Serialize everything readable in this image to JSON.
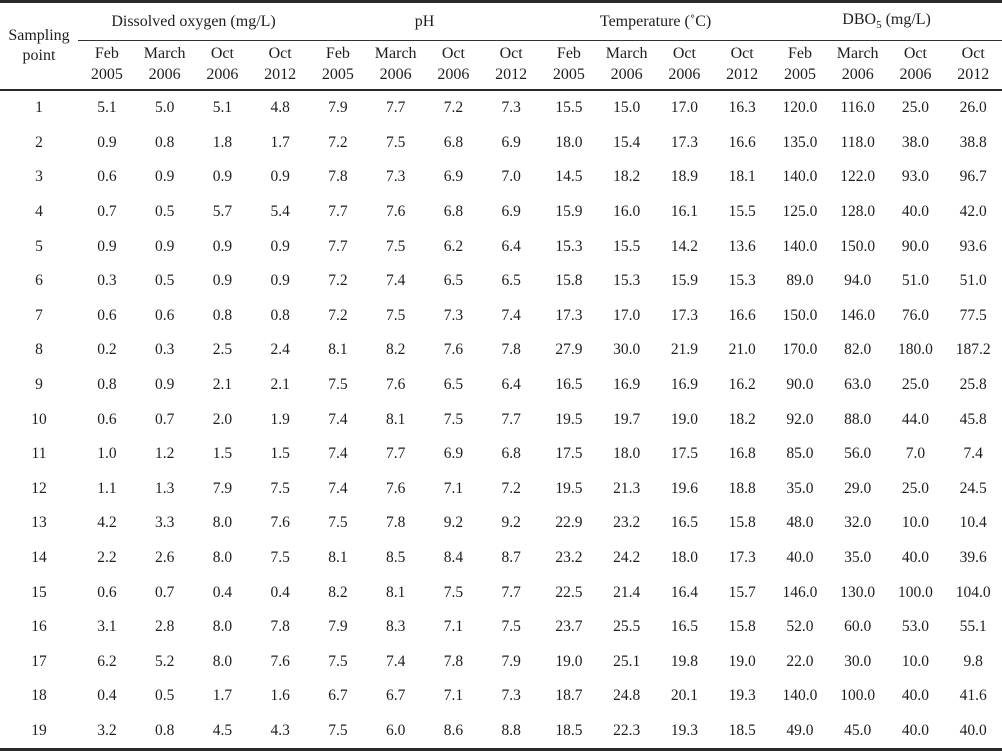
{
  "table": {
    "row_header": "Sampling point",
    "groups": [
      {
        "label": "Dissolved oxygen (mg/L)"
      },
      {
        "label": "pH"
      },
      {
        "label": "Temperature (˚C)"
      },
      {
        "label_prefix": "DBO",
        "label_sub": "5",
        "label_suffix": " (mg/L)"
      }
    ],
    "sub_columns": [
      {
        "month": "Feb",
        "year": "2005"
      },
      {
        "month": "March",
        "year": "2006"
      },
      {
        "month": "Oct",
        "year": "2006"
      },
      {
        "month": "Oct",
        "year": "2012"
      }
    ],
    "rows": [
      {
        "point": "1",
        "dissolved_oxygen": [
          "5.1",
          "5.0",
          "5.1",
          "4.8"
        ],
        "ph": [
          "7.9",
          "7.7",
          "7.2",
          "7.3"
        ],
        "temperature": [
          "15.5",
          "15.0",
          "17.0",
          "16.3"
        ],
        "dbo5": [
          "120.0",
          "116.0",
          "25.0",
          "26.0"
        ]
      },
      {
        "point": "2",
        "dissolved_oxygen": [
          "0.9",
          "0.8",
          "1.8",
          "1.7"
        ],
        "ph": [
          "7.2",
          "7.5",
          "6.8",
          "6.9"
        ],
        "temperature": [
          "18.0",
          "15.4",
          "17.3",
          "16.6"
        ],
        "dbo5": [
          "135.0",
          "118.0",
          "38.0",
          "38.8"
        ]
      },
      {
        "point": "3",
        "dissolved_oxygen": [
          "0.6",
          "0.9",
          "0.9",
          "0.9"
        ],
        "ph": [
          "7.8",
          "7.3",
          "6.9",
          "7.0"
        ],
        "temperature": [
          "14.5",
          "18.2",
          "18.9",
          "18.1"
        ],
        "dbo5": [
          "140.0",
          "122.0",
          "93.0",
          "96.7"
        ]
      },
      {
        "point": "4",
        "dissolved_oxygen": [
          "0.7",
          "0.5",
          "5.7",
          "5.4"
        ],
        "ph": [
          "7.7",
          "7.6",
          "6.8",
          "6.9"
        ],
        "temperature": [
          "15.9",
          "16.0",
          "16.1",
          "15.5"
        ],
        "dbo5": [
          "125.0",
          "128.0",
          "40.0",
          "42.0"
        ]
      },
      {
        "point": "5",
        "dissolved_oxygen": [
          "0.9",
          "0.9",
          "0.9",
          "0.9"
        ],
        "ph": [
          "7.7",
          "7.5",
          "6.2",
          "6.4"
        ],
        "temperature": [
          "15.3",
          "15.5",
          "14.2",
          "13.6"
        ],
        "dbo5": [
          "140.0",
          "150.0",
          "90.0",
          "93.6"
        ]
      },
      {
        "point": "6",
        "dissolved_oxygen": [
          "0.3",
          "0.5",
          "0.9",
          "0.9"
        ],
        "ph": [
          "7.2",
          "7.4",
          "6.5",
          "6.5"
        ],
        "temperature": [
          "15.8",
          "15.3",
          "15.9",
          "15.3"
        ],
        "dbo5": [
          "89.0",
          "94.0",
          "51.0",
          "51.0"
        ]
      },
      {
        "point": "7",
        "dissolved_oxygen": [
          "0.6",
          "0.6",
          "0.8",
          "0.8"
        ],
        "ph": [
          "7.2",
          "7.5",
          "7.3",
          "7.4"
        ],
        "temperature": [
          "17.3",
          "17.0",
          "17.3",
          "16.6"
        ],
        "dbo5": [
          "150.0",
          "146.0",
          "76.0",
          "77.5"
        ]
      },
      {
        "point": "8",
        "dissolved_oxygen": [
          "0.2",
          "0.3",
          "2.5",
          "2.4"
        ],
        "ph": [
          "8.1",
          "8.2",
          "7.6",
          "7.8"
        ],
        "temperature": [
          "27.9",
          "30.0",
          "21.9",
          "21.0"
        ],
        "dbo5": [
          "170.0",
          "82.0",
          "180.0",
          "187.2"
        ]
      },
      {
        "point": "9",
        "dissolved_oxygen": [
          "0.8",
          "0.9",
          "2.1",
          "2.1"
        ],
        "ph": [
          "7.5",
          "7.6",
          "6.5",
          "6.4"
        ],
        "temperature": [
          "16.5",
          "16.9",
          "16.9",
          "16.2"
        ],
        "dbo5": [
          "90.0",
          "63.0",
          "25.0",
          "25.8"
        ]
      },
      {
        "point": "10",
        "dissolved_oxygen": [
          "0.6",
          "0.7",
          "2.0",
          "1.9"
        ],
        "ph": [
          "7.4",
          "8.1",
          "7.5",
          "7.7"
        ],
        "temperature": [
          "19.5",
          "19.7",
          "19.0",
          "18.2"
        ],
        "dbo5": [
          "92.0",
          "88.0",
          "44.0",
          "45.8"
        ]
      },
      {
        "point": "11",
        "dissolved_oxygen": [
          "1.0",
          "1.2",
          "1.5",
          "1.5"
        ],
        "ph": [
          "7.4",
          "7.7",
          "6.9",
          "6.8"
        ],
        "temperature": [
          "17.5",
          "18.0",
          "17.5",
          "16.8"
        ],
        "dbo5": [
          "85.0",
          "56.0",
          "7.0",
          "7.4"
        ]
      },
      {
        "point": "12",
        "dissolved_oxygen": [
          "1.1",
          "1.3",
          "7.9",
          "7.5"
        ],
        "ph": [
          "7.4",
          "7.6",
          "7.1",
          "7.2"
        ],
        "temperature": [
          "19.5",
          "21.3",
          "19.6",
          "18.8"
        ],
        "dbo5": [
          "35.0",
          "29.0",
          "25.0",
          "24.5"
        ]
      },
      {
        "point": "13",
        "dissolved_oxygen": [
          "4.2",
          "3.3",
          "8.0",
          "7.6"
        ],
        "ph": [
          "7.5",
          "7.8",
          "9.2",
          "9.2"
        ],
        "temperature": [
          "22.9",
          "23.2",
          "16.5",
          "15.8"
        ],
        "dbo5": [
          "48.0",
          "32.0",
          "10.0",
          "10.4"
        ]
      },
      {
        "point": "14",
        "dissolved_oxygen": [
          "2.2",
          "2.6",
          "8.0",
          "7.5"
        ],
        "ph": [
          "8.1",
          "8.5",
          "8.4",
          "8.7"
        ],
        "temperature": [
          "23.2",
          "24.2",
          "18.0",
          "17.3"
        ],
        "dbo5": [
          "40.0",
          "35.0",
          "40.0",
          "39.6"
        ]
      },
      {
        "point": "15",
        "dissolved_oxygen": [
          "0.6",
          "0.7",
          "0.4",
          "0.4"
        ],
        "ph": [
          "8.2",
          "8.1",
          "7.5",
          "7.7"
        ],
        "temperature": [
          "22.5",
          "21.4",
          "16.4",
          "15.7"
        ],
        "dbo5": [
          "146.0",
          "130.0",
          "100.0",
          "104.0"
        ]
      },
      {
        "point": "16",
        "dissolved_oxygen": [
          "3.1",
          "2.8",
          "8.0",
          "7.8"
        ],
        "ph": [
          "7.9",
          "8.3",
          "7.1",
          "7.5"
        ],
        "temperature": [
          "23.7",
          "25.5",
          "16.5",
          "15.8"
        ],
        "dbo5": [
          "52.0",
          "60.0",
          "53.0",
          "55.1"
        ]
      },
      {
        "point": "17",
        "dissolved_oxygen": [
          "6.2",
          "5.2",
          "8.0",
          "7.6"
        ],
        "ph": [
          "7.5",
          "7.4",
          "7.8",
          "7.9"
        ],
        "temperature": [
          "19.0",
          "25.1",
          "19.8",
          "19.0"
        ],
        "dbo5": [
          "22.0",
          "30.0",
          "10.0",
          "9.8"
        ]
      },
      {
        "point": "18",
        "dissolved_oxygen": [
          "0.4",
          "0.5",
          "1.7",
          "1.6"
        ],
        "ph": [
          "6.7",
          "6.7",
          "7.1",
          "7.3"
        ],
        "temperature": [
          "18.7",
          "24.8",
          "20.1",
          "19.3"
        ],
        "dbo5": [
          "140.0",
          "100.0",
          "40.0",
          "41.6"
        ]
      },
      {
        "point": "19",
        "dissolved_oxygen": [
          "3.2",
          "0.8",
          "4.5",
          "4.3"
        ],
        "ph": [
          "7.5",
          "6.0",
          "8.6",
          "8.8"
        ],
        "temperature": [
          "18.5",
          "22.3",
          "19.3",
          "18.5"
        ],
        "dbo5": [
          "49.0",
          "45.0",
          "40.0",
          "40.0"
        ]
      }
    ]
  }
}
